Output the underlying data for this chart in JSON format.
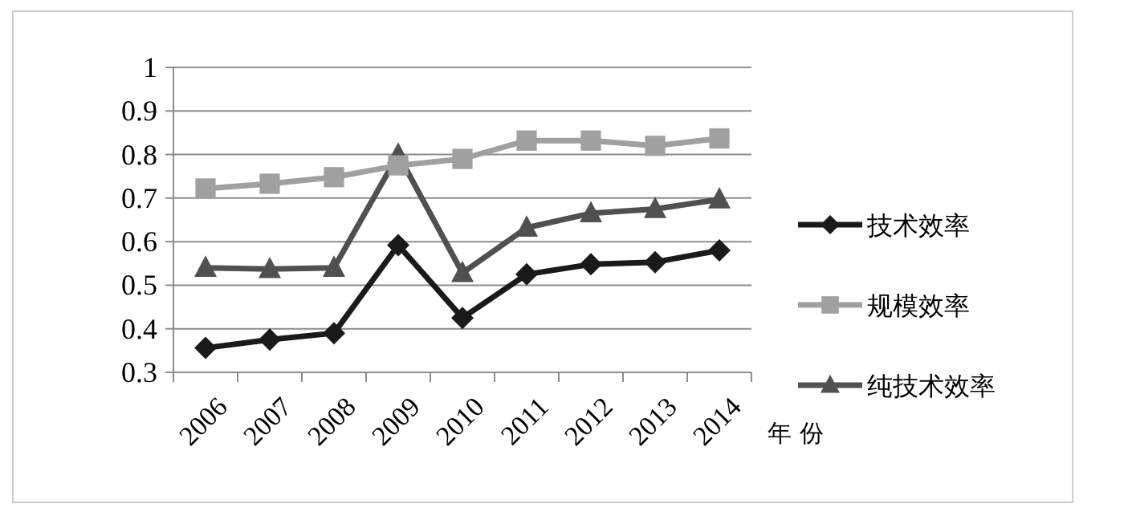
{
  "chart_data": {
    "type": "line",
    "xlabel": "年 份",
    "categories": [
      "2006",
      "2007",
      "2008",
      "2009",
      "2010",
      "2011",
      "2012",
      "2013",
      "2014"
    ],
    "series": [
      {
        "name": "技术效率",
        "color": "#1a1a1a",
        "marker": "diamond",
        "values": [
          0.356,
          0.375,
          0.39,
          0.592,
          0.425,
          0.525,
          0.548,
          0.553,
          0.58
        ]
      },
      {
        "name": "规模效率",
        "color": "#a0a0a0",
        "marker": "square",
        "values": [
          0.722,
          0.733,
          0.748,
          0.775,
          0.79,
          0.832,
          0.832,
          0.82,
          0.837
        ]
      },
      {
        "name": "纯技术效率",
        "color": "#505050",
        "marker": "triangle",
        "values": [
          0.54,
          0.537,
          0.54,
          0.8,
          0.528,
          0.632,
          0.665,
          0.675,
          0.697
        ]
      }
    ],
    "ylim": [
      0.3,
      1
    ],
    "yticks": [
      0.3,
      0.4,
      0.5,
      0.6,
      0.7,
      0.8,
      0.9,
      1
    ],
    "grid": "y",
    "legend": "right"
  }
}
